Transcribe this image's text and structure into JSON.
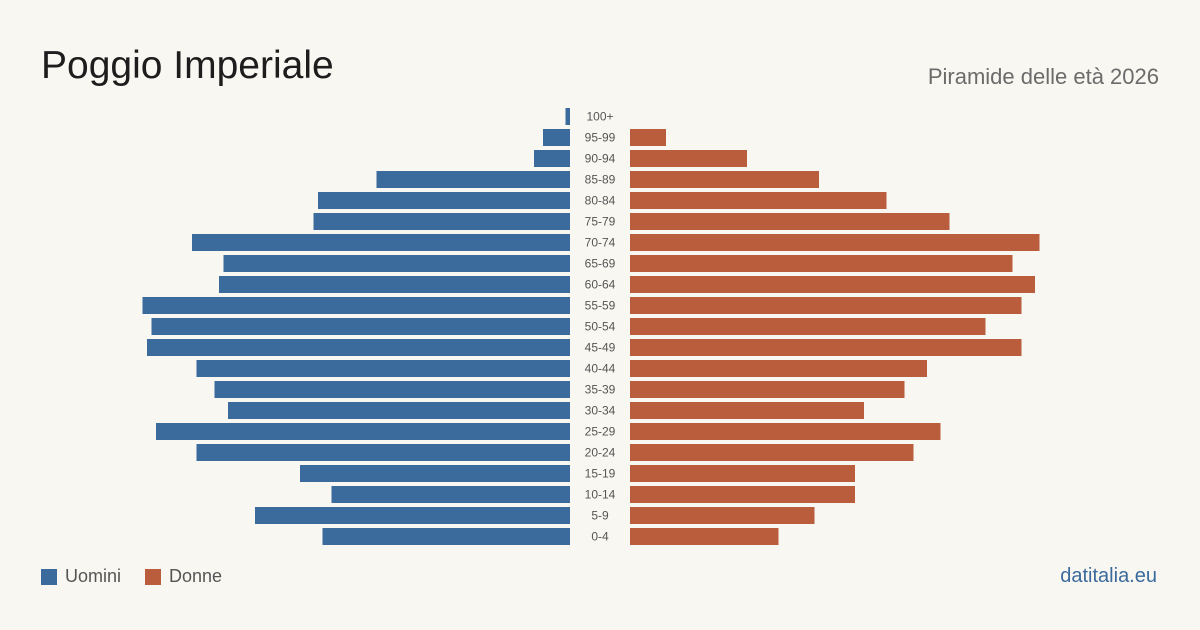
{
  "header": {
    "title": "Poggio Imperiale",
    "subtitle": "Piramide delle età 2026"
  },
  "legend": {
    "men_label": "Uomini",
    "women_label": "Donne"
  },
  "footer": {
    "site": "datitalia.eu"
  },
  "colors": {
    "men": "#3b6a9c",
    "women": "#b95d3d",
    "background": "#f9f7f2"
  },
  "chart_data": {
    "type": "bar",
    "orientation": "horizontal-pyramid",
    "categories": [
      "100+",
      "95-99",
      "90-94",
      "85-89",
      "80-84",
      "75-79",
      "70-74",
      "65-69",
      "60-64",
      "55-59",
      "50-54",
      "45-49",
      "40-44",
      "35-39",
      "30-34",
      "25-29",
      "20-24",
      "15-19",
      "10-14",
      "5-9",
      "0-4"
    ],
    "series": [
      {
        "name": "Uomini",
        "values": [
          1,
          6,
          8,
          43,
          56,
          57,
          84,
          77,
          78,
          95,
          93,
          94,
          83,
          79,
          76,
          92,
          83,
          60,
          53,
          70,
          55
        ]
      },
      {
        "name": "Donne",
        "values": [
          0,
          8,
          26,
          42,
          57,
          71,
          91,
          85,
          90,
          87,
          79,
          87,
          66,
          61,
          52,
          69,
          63,
          50,
          50,
          41,
          33
        ]
      }
    ],
    "xlim": [
      0,
      100
    ],
    "legend_position": "bottom-left"
  }
}
